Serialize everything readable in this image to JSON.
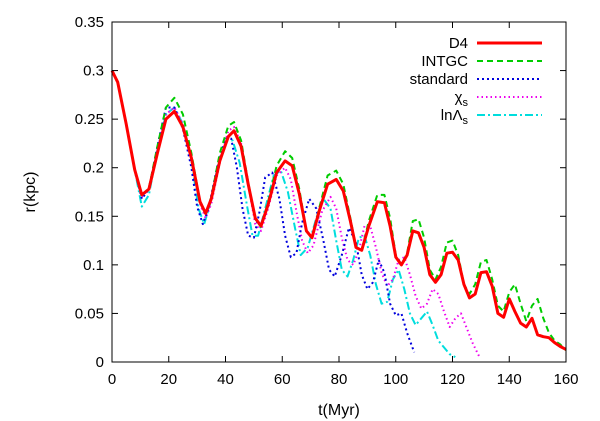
{
  "chart_data": {
    "type": "line",
    "title": "",
    "xlabel": "t(Myr)",
    "ylabel": "r(kpc)",
    "xlim": [
      0,
      160
    ],
    "ylim": [
      0,
      0.35
    ],
    "xticks": [
      0,
      20,
      40,
      60,
      80,
      100,
      120,
      140,
      160
    ],
    "xtick_labels": [
      "0",
      "20",
      "40",
      "60",
      "80",
      "100",
      "120",
      "140",
      "160"
    ],
    "yticks": [
      0,
      0.05,
      0.1,
      0.15,
      0.2,
      0.25,
      0.3,
      0.35
    ],
    "ytick_labels": [
      "0",
      "0.05",
      "0.1",
      "0.15",
      "0.2",
      "0.25",
      "0.3",
      "0.35"
    ],
    "grid": false,
    "legend_position": "top-right",
    "series": [
      {
        "name": "D4",
        "label_parts": [
          {
            "text": "D4"
          }
        ],
        "color": "#ff0000",
        "dash": "solid",
        "width": 3,
        "x": [
          0,
          2,
          5,
          8,
          10.5,
          13,
          16,
          19,
          22,
          25,
          28,
          31,
          33,
          35,
          38,
          41,
          43,
          45.5,
          48,
          50.5,
          52.5,
          55,
          58,
          61,
          63.5,
          66,
          68.5,
          70.5,
          73,
          76,
          79,
          81.5,
          84,
          86,
          88,
          90.5,
          93.5,
          96,
          98,
          100,
          102,
          104,
          106,
          108,
          110,
          112,
          114,
          116,
          118,
          120,
          122,
          124,
          126,
          128,
          130,
          132,
          134,
          136,
          138,
          140,
          142,
          144,
          146,
          148,
          150,
          152,
          154,
          156,
          158,
          160
        ],
        "y": [
          0.3,
          0.288,
          0.245,
          0.198,
          0.172,
          0.178,
          0.215,
          0.25,
          0.258,
          0.242,
          0.21,
          0.165,
          0.153,
          0.168,
          0.207,
          0.232,
          0.238,
          0.222,
          0.183,
          0.148,
          0.14,
          0.162,
          0.195,
          0.207,
          0.202,
          0.173,
          0.135,
          0.128,
          0.155,
          0.183,
          0.188,
          0.176,
          0.145,
          0.118,
          0.115,
          0.14,
          0.165,
          0.164,
          0.14,
          0.108,
          0.1,
          0.11,
          0.135,
          0.133,
          0.118,
          0.09,
          0.082,
          0.09,
          0.112,
          0.113,
          0.105,
          0.08,
          0.066,
          0.07,
          0.092,
          0.093,
          0.078,
          0.05,
          0.046,
          0.065,
          0.052,
          0.04,
          0.036,
          0.045,
          0.028,
          0.026,
          0.025,
          0.02,
          0.016,
          0.013
        ]
      },
      {
        "name": "INTGC",
        "label_parts": [
          {
            "text": "INTGC"
          }
        ],
        "color": "#00cc00",
        "dash": "6,4",
        "width": 2,
        "x": [
          0,
          2,
          5,
          8,
          10.5,
          13,
          16,
          19,
          22,
          25,
          28,
          31,
          33,
          35,
          38,
          41,
          43,
          45.5,
          48,
          50.5,
          52.5,
          55,
          58,
          61,
          63.5,
          66,
          68.5,
          70.5,
          73,
          76,
          79,
          81.5,
          84,
          86,
          88,
          90.5,
          93.5,
          96,
          98,
          100,
          102,
          104,
          106,
          108,
          110,
          112,
          114,
          116,
          118,
          120,
          122,
          124,
          126,
          128,
          130,
          132,
          134,
          136,
          138,
          140,
          142,
          144,
          146,
          148,
          150,
          152,
          154,
          156,
          158,
          160
        ],
        "y": [
          0.3,
          0.288,
          0.245,
          0.198,
          0.171,
          0.179,
          0.222,
          0.262,
          0.272,
          0.255,
          0.215,
          0.165,
          0.152,
          0.17,
          0.215,
          0.243,
          0.247,
          0.228,
          0.185,
          0.147,
          0.139,
          0.165,
          0.202,
          0.217,
          0.21,
          0.178,
          0.135,
          0.127,
          0.158,
          0.192,
          0.197,
          0.183,
          0.148,
          0.118,
          0.115,
          0.145,
          0.172,
          0.172,
          0.148,
          0.11,
          0.1,
          0.112,
          0.145,
          0.147,
          0.128,
          0.095,
          0.085,
          0.098,
          0.123,
          0.125,
          0.11,
          0.08,
          0.07,
          0.08,
          0.103,
          0.105,
          0.085,
          0.058,
          0.052,
          0.072,
          0.08,
          0.06,
          0.042,
          0.058,
          0.065,
          0.045,
          0.03,
          0.022,
          0.018,
          0.012
        ]
      },
      {
        "name": "standard",
        "label_parts": [
          {
            "text": "standard"
          }
        ],
        "color": "#0000dd",
        "dash": "2,3",
        "width": 2,
        "x": [
          0,
          2,
          5,
          8,
          10.5,
          13,
          16,
          19,
          22,
          25,
          28,
          30,
          32,
          34,
          37,
          40,
          42,
          44,
          46,
          48,
          50,
          52,
          54,
          56.5,
          59,
          61,
          63,
          65,
          67,
          69.5,
          72,
          74.5,
          76.5,
          78.5,
          81,
          83.5,
          86,
          88,
          90,
          92,
          94,
          96,
          98,
          100,
          102,
          104,
          106.5
        ],
        "y": [
          0.3,
          0.288,
          0.245,
          0.198,
          0.168,
          0.178,
          0.222,
          0.262,
          0.262,
          0.24,
          0.2,
          0.16,
          0.142,
          0.158,
          0.2,
          0.23,
          0.23,
          0.2,
          0.158,
          0.13,
          0.128,
          0.155,
          0.19,
          0.195,
          0.168,
          0.13,
          0.108,
          0.112,
          0.143,
          0.168,
          0.158,
          0.125,
          0.095,
          0.088,
          0.11,
          0.138,
          0.123,
          0.09,
          0.075,
          0.082,
          0.105,
          0.092,
          0.06,
          0.048,
          0.05,
          0.03,
          0.01
        ]
      },
      {
        "name": "χs",
        "label_parts": [
          {
            "text": "χ"
          },
          {
            "text": "s",
            "sub": true
          }
        ],
        "color": "#ee00ee",
        "dash": "1.5,3",
        "width": 2,
        "x": [
          0,
          2,
          5,
          8,
          10.5,
          13,
          16,
          19,
          22,
          25,
          28,
          31,
          33,
          35,
          38,
          41,
          43,
          45.5,
          48,
          50.5,
          52.5,
          55,
          58,
          61,
          63,
          65,
          67,
          69,
          71,
          74,
          77,
          79,
          81,
          83,
          85,
          87,
          89,
          91,
          93,
          95,
          97,
          99,
          101,
          103,
          105,
          107,
          109,
          111,
          113,
          115,
          117,
          119,
          121,
          123,
          125,
          127,
          129.5
        ],
        "y": [
          0.3,
          0.288,
          0.245,
          0.198,
          0.17,
          0.178,
          0.218,
          0.255,
          0.262,
          0.245,
          0.21,
          0.163,
          0.148,
          0.163,
          0.205,
          0.238,
          0.242,
          0.225,
          0.182,
          0.142,
          0.135,
          0.158,
          0.192,
          0.2,
          0.188,
          0.155,
          0.125,
          0.112,
          0.12,
          0.155,
          0.17,
          0.158,
          0.128,
          0.105,
          0.1,
          0.115,
          0.14,
          0.14,
          0.118,
          0.092,
          0.078,
          0.085,
          0.105,
          0.108,
          0.09,
          0.068,
          0.055,
          0.06,
          0.075,
          0.07,
          0.052,
          0.036,
          0.045,
          0.05,
          0.035,
          0.02,
          0.005
        ]
      },
      {
        "name": "lnΛs",
        "label_parts": [
          {
            "text": "lnΛ"
          },
          {
            "text": "s",
            "sub": true
          }
        ],
        "color": "#00dddd",
        "dash": "8,3,2,3",
        "width": 2,
        "x": [
          0,
          2,
          5,
          8,
          10.5,
          13,
          16,
          19,
          22,
          25,
          28,
          30.5,
          32.5,
          34.5,
          37.5,
          40.5,
          42.5,
          45,
          47.5,
          49.5,
          51.5,
          54,
          57,
          59.5,
          62,
          64.5,
          66.5,
          69,
          72,
          74.5,
          77,
          79,
          81,
          83,
          85,
          87,
          89,
          91,
          93,
          95,
          97,
          99,
          101,
          103,
          105,
          107,
          109,
          111,
          113,
          115,
          117,
          119,
          121
        ],
        "y": [
          0.3,
          0.288,
          0.245,
          0.198,
          0.16,
          0.172,
          0.218,
          0.255,
          0.262,
          0.245,
          0.208,
          0.158,
          0.142,
          0.162,
          0.205,
          0.228,
          0.228,
          0.205,
          0.162,
          0.13,
          0.13,
          0.158,
          0.192,
          0.197,
          0.175,
          0.138,
          0.11,
          0.118,
          0.148,
          0.168,
          0.158,
          0.125,
          0.095,
          0.088,
          0.105,
          0.128,
          0.13,
          0.11,
          0.08,
          0.06,
          0.062,
          0.085,
          0.095,
          0.075,
          0.05,
          0.038,
          0.045,
          0.052,
          0.038,
          0.022,
          0.015,
          0.008,
          0.005
        ]
      }
    ]
  }
}
